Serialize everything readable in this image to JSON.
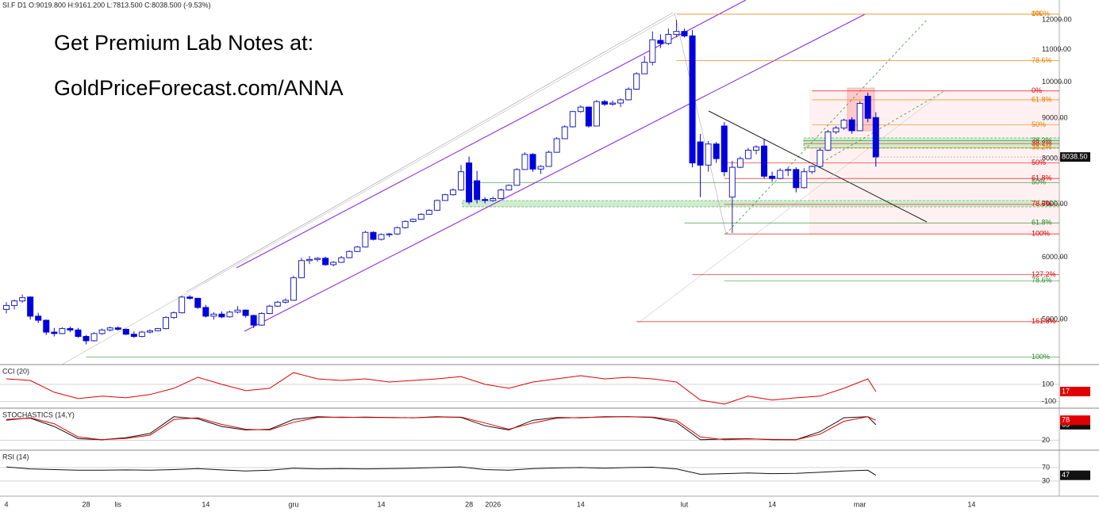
{
  "header": "SI.F  D1  O:9019.800  H:9161.200  L:7813.500  C:8038.500  (-9.53%)",
  "promo": [
    "Get Premium Lab Notes at:",
    "GoldPriceForecast.com/ANNA"
  ],
  "chart_data": [
    {
      "type": "candlestick",
      "log": true,
      "color_up": "#2020c0",
      "color_down": "#0000dd",
      "categories": [
        "4",
        null,
        null,
        null,
        null,
        null,
        null,
        null,
        null,
        null,
        "28",
        null,
        null,
        null,
        "lis",
        null,
        null,
        null,
        null,
        null,
        null,
        null,
        null,
        null,
        null,
        "14",
        null,
        null,
        null,
        null,
        null,
        null,
        null,
        null,
        null,
        null,
        "gru",
        null,
        null,
        null,
        null,
        null,
        null,
        null,
        null,
        null,
        null,
        "14",
        null,
        null,
        null,
        null,
        null,
        null,
        null,
        null,
        null,
        null,
        "28",
        null,
        null,
        "2026",
        null,
        null,
        null,
        null,
        null,
        null,
        null,
        null,
        null,
        null,
        "14",
        null,
        null,
        null,
        null,
        null,
        null,
        null,
        null,
        null,
        null,
        null,
        null,
        "lut",
        null,
        null,
        null,
        null,
        null,
        null,
        null,
        null,
        null,
        null,
        "14",
        null,
        null,
        null,
        null,
        null,
        null,
        null,
        null,
        null,
        null,
        "mar",
        null,
        null,
        null,
        null,
        null,
        null,
        null,
        null,
        null,
        null,
        null,
        null,
        null,
        "14",
        null,
        null,
        null,
        null,
        null,
        null,
        null,
        null,
        null,
        null,
        null
      ],
      "open": [
        5150,
        5210,
        5280,
        5340,
        5050,
        4990,
        4820,
        4800,
        4870,
        4850,
        4760,
        4700,
        4800,
        4850,
        4880,
        4860,
        4790,
        4760,
        4820,
        4840,
        4870,
        5030,
        5100,
        5340,
        5320,
        5180,
        5050,
        5080,
        5040,
        5110,
        5140,
        5060,
        4920,
        5090,
        5200,
        5260,
        5290,
        5650,
        5940,
        5960,
        5980,
        5870,
        5910,
        5990,
        6100,
        6180,
        6450,
        6320,
        6410,
        6420,
        6540,
        6660,
        6700,
        6800,
        6880,
        7080,
        7200,
        7300,
        7900,
        7500,
        7100,
        7080,
        7120,
        7300,
        7400,
        7750,
        8100,
        7760,
        7820,
        8150,
        8480,
        8780,
        9180,
        9300,
        8800,
        9450,
        9380,
        9410,
        9500,
        9800,
        10250,
        10600,
        11300,
        11200,
        11500,
        11600,
        11450,
        8400,
        7850,
        8350,
        8800,
        7150,
        7800,
        8000,
        8200,
        8300,
        7600,
        7550,
        7730,
        7750,
        7350,
        7700,
        7820,
        8200,
        8650,
        8750,
        8960,
        8680,
        9600,
        9019.8,
        null,
        null,
        null,
        null,
        null,
        null,
        null,
        null,
        null,
        null,
        null,
        null,
        null,
        null,
        null,
        null,
        null,
        null,
        null,
        null,
        null,
        null,
        null
      ],
      "high": [
        5260,
        5300,
        5380,
        5350,
        5100,
        5000,
        4880,
        4890,
        4900,
        4880,
        4780,
        4820,
        4870,
        4900,
        4900,
        4870,
        4830,
        4840,
        4860,
        4880,
        5050,
        5120,
        5360,
        5370,
        5330,
        5220,
        5110,
        5120,
        5130,
        5200,
        5150,
        5070,
        5110,
        5220,
        5280,
        5320,
        5680,
        5990,
        6020,
        6000,
        6010,
        5930,
        6020,
        6120,
        6200,
        6480,
        6470,
        6430,
        6440,
        6560,
        6680,
        6720,
        6820,
        6900,
        7100,
        7220,
        7340,
        7850,
        8050,
        7720,
        7150,
        7160,
        7330,
        7420,
        7780,
        8150,
        8130,
        7850,
        8190,
        8520,
        8820,
        9200,
        9350,
        9310,
        9500,
        9500,
        9480,
        9540,
        9850,
        10300,
        10800,
        11600,
        11500,
        11700,
        12000,
        11700,
        11650,
        8600,
        8420,
        8400,
        8900,
        7950,
        8050,
        8260,
        8320,
        8480,
        7700,
        7780,
        7800,
        7800,
        7780,
        7840,
        8250,
        8700,
        8800,
        8990,
        9030,
        9460,
        9700,
        9161.2,
        null,
        null,
        null,
        null,
        null,
        null,
        null,
        null,
        null,
        null,
        null,
        null,
        null,
        null,
        null,
        null,
        null,
        null,
        null,
        null,
        null,
        null,
        null
      ],
      "low": [
        5090,
        5150,
        5250,
        5000,
        4950,
        4780,
        4760,
        4790,
        4820,
        4740,
        4650,
        4690,
        4780,
        4830,
        4840,
        4780,
        4740,
        4750,
        4800,
        4830,
        4860,
        5010,
        5090,
        5300,
        5160,
        5030,
        5000,
        5020,
        5030,
        5090,
        5030,
        4880,
        4910,
        5080,
        5190,
        5240,
        5280,
        5640,
        5880,
        5920,
        5850,
        5840,
        5900,
        5980,
        6090,
        6170,
        6300,
        6300,
        6360,
        6400,
        6520,
        6640,
        6690,
        6790,
        6870,
        7070,
        7180,
        7280,
        7000,
        7020,
        7020,
        7050,
        7110,
        7290,
        7390,
        7740,
        7700,
        7650,
        7810,
        8140,
        8470,
        8760,
        9150,
        8760,
        8790,
        9330,
        9340,
        9300,
        9480,
        9780,
        10240,
        10500,
        11050,
        11150,
        11400,
        11400,
        7800,
        7150,
        7700,
        7900,
        7600,
        6440,
        7780,
        7990,
        8100,
        7550,
        7480,
        7530,
        7600,
        7250,
        7330,
        7650,
        7800,
        8180,
        8600,
        8700,
        8600,
        8670,
        8900,
        7813.5,
        null,
        null,
        null,
        null,
        null,
        null,
        null,
        null,
        null,
        null,
        null,
        null,
        null,
        null,
        null,
        null,
        null,
        null,
        null,
        null,
        null,
        null,
        null
      ],
      "close": [
        5210,
        5280,
        5330,
        5050,
        4990,
        4820,
        4800,
        4870,
        4850,
        4760,
        4700,
        4800,
        4850,
        4880,
        4860,
        4790,
        4760,
        4820,
        4840,
        4870,
        5030,
        5100,
        5340,
        5320,
        5180,
        5050,
        5080,
        5040,
        5110,
        5140,
        5060,
        4920,
        5090,
        5200,
        5260,
        5290,
        5650,
        5940,
        5960,
        5980,
        5870,
        5910,
        5990,
        6100,
        6180,
        6450,
        6320,
        6410,
        6420,
        6540,
        6660,
        6700,
        6800,
        6880,
        7080,
        7200,
        7300,
        7700,
        7050,
        7100,
        7080,
        7120,
        7300,
        7400,
        7750,
        8100,
        7760,
        7820,
        8150,
        8480,
        8780,
        9180,
        9300,
        8800,
        9450,
        9380,
        9410,
        9500,
        9800,
        10250,
        10600,
        11320,
        11200,
        11500,
        11600,
        11450,
        7900,
        7850,
        8350,
        8000,
        7700,
        7800,
        8000,
        8200,
        8280,
        7600,
        7550,
        7730,
        7750,
        7350,
        7700,
        7820,
        8200,
        8650,
        8750,
        8950,
        8680,
        9400,
        9000,
        8038.5,
        null,
        null,
        null,
        null,
        null,
        null,
        null,
        null,
        null,
        null,
        null,
        null,
        null,
        null,
        null,
        null,
        null,
        null,
        null,
        null,
        null,
        null,
        null
      ],
      "ylim": [
        4384,
        12715
      ],
      "yticks": [
        {
          "value": 5000,
          "label": "5000.00"
        },
        {
          "value": 6000,
          "label": "6000.00"
        },
        {
          "value": 7000,
          "label": "7000.00"
        },
        {
          "value": 8000,
          "label": "8000.00"
        },
        {
          "value": 9000,
          "label": "9000.00"
        },
        {
          "value": 10000,
          "label": "10000.00"
        },
        {
          "value": 11000,
          "label": "11000.00"
        },
        {
          "value": 12000,
          "label": "12000.00"
        }
      ],
      "last_price": {
        "value": 8038.5,
        "label": "8038.50"
      },
      "levels": [
        {
          "value": 12200,
          "label": "100%",
          "color": "#e08000",
          "start": 84
        },
        {
          "value": 12200,
          "label": "0%",
          "color": "#e08000",
          "start": 84
        },
        {
          "value": 10650,
          "label": "78.6%",
          "color": "#e08000",
          "start": 84
        },
        {
          "value": 9750,
          "label": "0%",
          "color": "#e00000",
          "start": 101
        },
        {
          "value": 9500,
          "label": "61.8%",
          "color": "#e08000",
          "start": 101
        },
        {
          "value": 8830,
          "label": "50%",
          "color": "#e08000",
          "start": 101
        },
        {
          "value": 8430,
          "label": "38.2%",
          "color": "#2a8a2a",
          "start": 100
        },
        {
          "value": 8360,
          "label": "38.2%",
          "color": "#e00000",
          "start": 100
        },
        {
          "value": 8260,
          "label": "38.2%",
          "color": "#e08000",
          "start": 100
        },
        {
          "value": 7900,
          "label": "50%",
          "color": "#e00000",
          "start": 90
        },
        {
          "value": 7550,
          "label": "61.8%",
          "color": "#e00000",
          "start": 90
        },
        {
          "value": 7460,
          "label": "50%",
          "color": "#2a8a2a",
          "start": 58
        },
        {
          "value": 7000,
          "label": "78.6%",
          "color": "#e00000",
          "start": 90
        },
        {
          "value": 6630,
          "label": "61.8%",
          "color": "#2a8a2a",
          "start": 85
        },
        {
          "value": 6420,
          "label": "100%",
          "color": "#e00000",
          "start": 90
        },
        {
          "value": 5700,
          "label": "127.2%",
          "color": "#e00000",
          "start": 86
        },
        {
          "value": 5600,
          "label": "78.6%",
          "color": "#2a8a2a",
          "start": 90
        },
        {
          "value": 4970,
          "label": "161.8%",
          "color": "#e00000",
          "start": 79
        },
        {
          "value": 4480,
          "label": "100%",
          "color": "#2a8a2a",
          "start": 10
        }
      ]
    },
    {
      "type": "line",
      "title": "CCI (20)",
      "x": [
        0,
        3,
        6,
        9,
        12,
        15,
        18,
        21,
        24,
        27,
        30,
        33,
        36,
        39,
        42,
        45,
        48,
        51,
        54,
        57,
        60,
        63,
        66,
        69,
        72,
        75,
        78,
        81,
        84,
        87,
        90,
        93,
        96,
        99,
        102,
        105,
        108,
        109
      ],
      "series": [
        {
          "color": "#e00000",
          "values": [
            164,
            145,
            9,
            -64,
            -36,
            -55,
            -18,
            55,
            182,
            100,
            27,
            55,
            236,
            164,
            145,
            164,
            127,
            145,
            164,
            190,
            100,
            55,
            127,
            164,
            200,
            164,
            182,
            164,
            127,
            -82,
            -127,
            -36,
            -82,
            -55,
            -36,
            55,
            164,
            17
          ]
        }
      ],
      "ylim": [
        -175,
        310
      ],
      "yticks": [
        100,
        -100
      ]
    },
    {
      "type": "line",
      "title": "STOCHASTICS (14,Y)",
      "x": [
        0,
        3,
        6,
        9,
        12,
        15,
        18,
        21,
        24,
        27,
        30,
        33,
        36,
        39,
        42,
        45,
        48,
        51,
        54,
        57,
        60,
        63,
        66,
        69,
        72,
        75,
        78,
        81,
        84,
        87,
        90,
        93,
        96,
        99,
        102,
        105,
        108,
        109
      ],
      "series": [
        {
          "color": "#111111",
          "values": [
            80,
            84,
            60,
            25,
            22,
            28,
            40,
            88,
            82,
            60,
            50,
            52,
            80,
            88,
            86,
            87,
            86,
            85,
            88,
            86,
            62,
            50,
            78,
            86,
            85,
            88,
            88,
            86,
            72,
            22,
            24,
            25,
            22,
            22,
            45,
            85,
            88,
            65
          ]
        },
        {
          "color": "#e00000",
          "values": [
            78,
            85,
            68,
            30,
            22,
            26,
            35,
            80,
            85,
            66,
            52,
            50,
            72,
            86,
            87,
            86,
            86,
            85,
            87,
            87,
            70,
            52,
            70,
            84,
            86,
            87,
            88,
            87,
            78,
            30,
            22,
            24,
            23,
            22,
            38,
            75,
            88,
            78
          ]
        }
      ],
      "ylim": [
        -8,
        108
      ],
      "yticks": [
        20
      ]
    },
    {
      "type": "line",
      "title": "RSI (14)",
      "x": [
        0,
        3,
        6,
        9,
        12,
        15,
        18,
        21,
        24,
        27,
        30,
        33,
        36,
        39,
        42,
        45,
        48,
        51,
        54,
        57,
        60,
        63,
        66,
        69,
        72,
        75,
        78,
        81,
        84,
        87,
        90,
        93,
        96,
        99,
        102,
        105,
        108,
        109
      ],
      "series": [
        {
          "color": "#111111",
          "values": [
            72,
            66,
            64,
            62,
            62,
            63,
            62,
            64,
            67,
            63,
            60,
            62,
            68,
            66,
            67,
            66,
            67,
            68,
            70,
            72,
            64,
            62,
            67,
            69,
            70,
            68,
            70,
            71,
            66,
            50,
            52,
            54,
            52,
            53,
            56,
            60,
            62,
            47
          ]
        }
      ],
      "ylim": [
        18,
        117
      ],
      "yticks": [
        70,
        30
      ]
    }
  ]
}
